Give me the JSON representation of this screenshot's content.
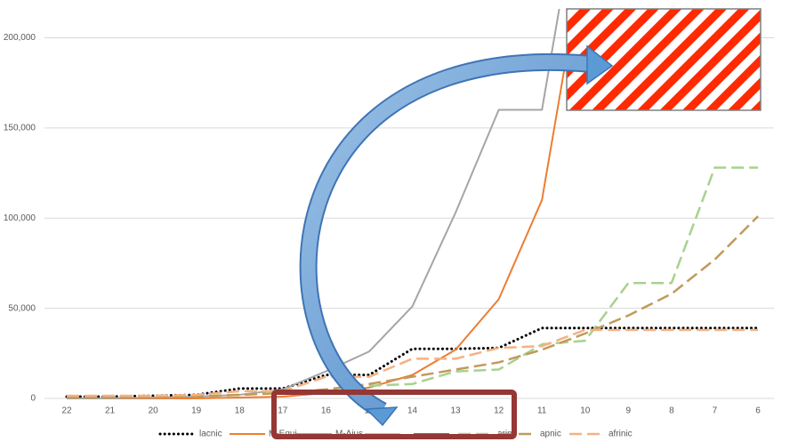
{
  "chart_data": {
    "type": "line",
    "categories": [
      "22",
      "21",
      "20",
      "19",
      "18",
      "17",
      "16",
      "15",
      "14",
      "13",
      "12",
      "11",
      "10",
      "9",
      "8",
      "7",
      "6"
    ],
    "ylim": [
      0,
      216000
    ],
    "yticks": [
      0,
      {
        "value": 50000,
        "label": "50,000"
      },
      {
        "value": 100000,
        "label": "100,000"
      },
      {
        "value": 150000,
        "label": "150,000"
      },
      {
        "value": 200000,
        "label": "200,000"
      }
    ],
    "grid": true,
    "legend": "bottom",
    "series": [
      {
        "name": "lacnic",
        "color": "#000000",
        "style": "dotted",
        "values": [
          1000,
          1000,
          1500,
          2000,
          5500,
          5500,
          13000,
          13000,
          27500,
          27500,
          28000,
          39000,
          39000,
          39000,
          39000,
          39000,
          39000
        ]
      },
      {
        "name": "M-Equi",
        "color": "#ed7d31",
        "style": "solid",
        "values": [
          0,
          0,
          0,
          0,
          500,
          1000,
          3000,
          6000,
          13000,
          27000,
          55000,
          110000,
          250000,
          null,
          null,
          null,
          null
        ]
      },
      {
        "name": "M-Ajus",
        "color": "#a5a5a5",
        "style": "solid",
        "values": [
          0,
          0,
          500,
          1000,
          2000,
          5000,
          15000,
          26000,
          51000,
          103000,
          160000,
          160000,
          300000,
          null,
          null,
          null,
          null
        ]
      },
      {
        "color": "#ffc000",
        "style": "solid",
        "values": [
          null,
          null,
          null,
          null,
          null,
          null,
          null,
          null,
          null,
          null,
          null,
          null,
          null,
          null,
          null,
          null,
          null
        ]
      },
      {
        "color": "#4472c4",
        "style": "solid",
        "values": [
          null,
          null,
          null,
          null,
          null,
          null,
          null,
          null,
          null,
          null,
          null,
          null,
          null,
          null,
          null,
          null,
          null
        ]
      },
      {
        "name": "arin",
        "color": "#a9d18e",
        "style": "dashed",
        "values": [
          1000,
          1000,
          1000,
          1000,
          2000,
          3000,
          5000,
          7000,
          8000,
          15000,
          16000,
          30000,
          32000,
          64000,
          64000,
          128000,
          128000
        ]
      },
      {
        "name": "apnic",
        "color": "#c09a5b",
        "style": "dashed",
        "values": [
          500,
          500,
          1000,
          1000,
          2000,
          3000,
          5000,
          8000,
          12000,
          16000,
          20000,
          27000,
          36000,
          46000,
          58000,
          77000,
          101000
        ]
      },
      {
        "name": "afrinic",
        "color": "#f4b183",
        "style": "dashed",
        "values": [
          1500,
          1500,
          1500,
          2000,
          4000,
          4000,
          12000,
          12000,
          22000,
          22000,
          28000,
          29000,
          38000,
          38000,
          38000,
          38000,
          38000
        ]
      }
    ]
  }
}
